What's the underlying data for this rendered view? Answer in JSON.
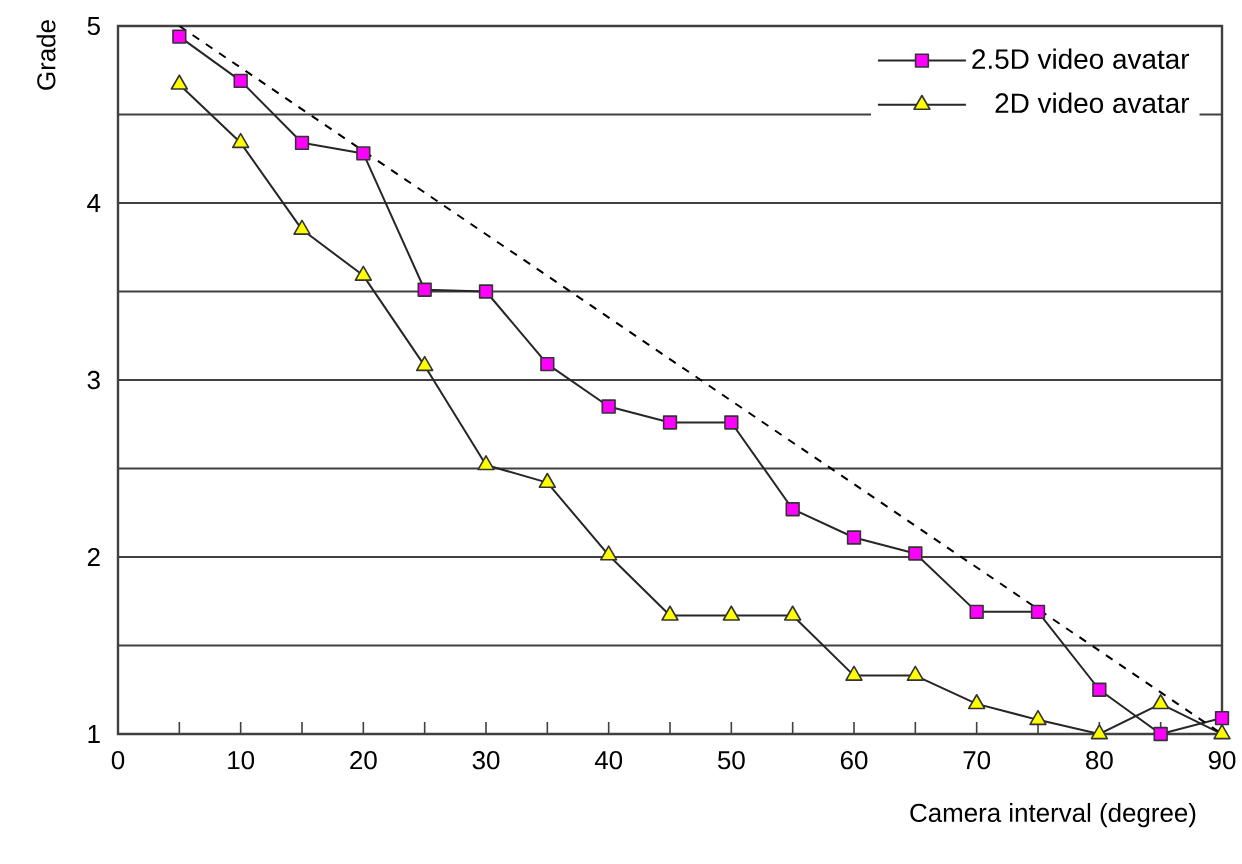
{
  "chart_data": {
    "type": "line",
    "xlabel": "Camera interval (degree)",
    "ylabel": "Grade",
    "xlim": [
      0,
      90
    ],
    "ylim": [
      1,
      5
    ],
    "xticks": [
      0,
      {
        "value": 5,
        "label": null
      },
      10,
      {
        "value": 15,
        "label": null
      },
      20,
      {
        "value": 25,
        "label": null
      },
      30,
      {
        "value": 35,
        "label": null
      },
      40,
      {
        "value": 45,
        "label": null
      },
      50,
      {
        "value": 55,
        "label": null
      },
      60,
      {
        "value": 65,
        "label": null
      },
      70,
      {
        "value": 75,
        "label": null
      },
      80,
      {
        "value": 85,
        "label": null
      },
      90
    ],
    "yticks": [
      1,
      {
        "value": 1.5,
        "label": null
      },
      2,
      {
        "value": 2.5,
        "label": null
      },
      3,
      {
        "value": 3.5,
        "label": null
      },
      4,
      {
        "value": 4.5,
        "label": null
      },
      5
    ],
    "grid": "y",
    "legend": "top right",
    "x": [
      5,
      10,
      15,
      20,
      25,
      30,
      35,
      40,
      45,
      50,
      55,
      60,
      65,
      70,
      75,
      80,
      85,
      90
    ],
    "series": [
      {
        "name": "2.5D video avatar",
        "color": "#ff00ff",
        "marker": "square",
        "values": [
          4.94,
          4.69,
          4.34,
          4.28,
          3.51,
          3.5,
          3.09,
          2.85,
          2.76,
          2.76,
          2.27,
          2.11,
          2.02,
          1.69,
          1.69,
          1.25,
          1.0,
          1.09
        ]
      },
      {
        "name": "2D video avatar",
        "color": "#ffff00",
        "marker": "triangle",
        "values": [
          4.67,
          4.34,
          3.85,
          3.59,
          3.08,
          2.52,
          2.42,
          2.01,
          1.67,
          1.67,
          1.67,
          1.33,
          1.33,
          1.17,
          1.08,
          1.0,
          1.17,
          1.0
        ]
      },
      {
        "color": "#000000",
        "marker": "none",
        "line_style": "dashed",
        "x": [
          5,
          90
        ],
        "values": [
          5,
          1
        ]
      }
    ]
  }
}
